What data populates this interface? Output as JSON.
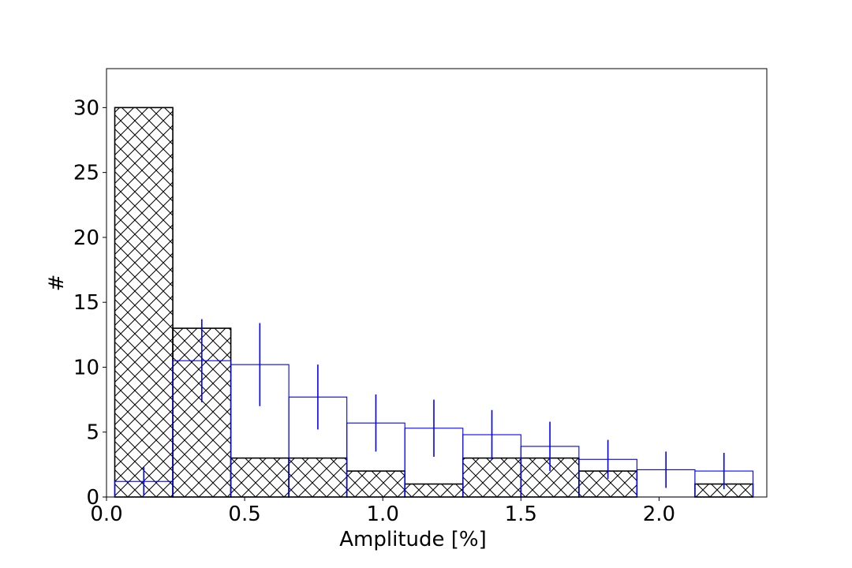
{
  "chart_data": {
    "type": "bar",
    "xlabel": "Amplitude [%]",
    "ylabel": "#",
    "xlim": [
      0.0,
      2.39
    ],
    "ylim": [
      0,
      33
    ],
    "xticks": [
      0.0,
      0.5,
      1.0,
      1.5,
      2.0
    ],
    "xtick_labels": [
      "0.0",
      "0.5",
      "1.0",
      "1.5",
      "2.0"
    ],
    "yticks": [
      0,
      5,
      10,
      15,
      20,
      25,
      30
    ],
    "ytick_labels": [
      "0",
      "5",
      "10",
      "15",
      "20",
      "25",
      "30"
    ],
    "grid": false,
    "bin_edges": [
      0.03,
      0.24,
      0.45,
      0.66,
      0.87,
      1.08,
      1.29,
      1.5,
      1.71,
      1.92,
      2.13,
      2.34
    ],
    "series": [
      {
        "style": "hatched",
        "color": "#000000",
        "values": [
          30,
          13,
          3,
          3,
          2,
          1,
          3,
          3,
          2,
          0,
          1
        ]
      },
      {
        "style": "step-with-errorbars",
        "color": "#0000ff",
        "values": [
          1.2,
          10.5,
          10.2,
          7.7,
          5.7,
          5.3,
          4.8,
          3.9,
          2.9,
          2.1,
          2.0
        ],
        "errors": [
          1.1,
          3.2,
          3.2,
          2.5,
          2.2,
          2.2,
          1.9,
          1.9,
          1.5,
          1.4,
          1.4
        ]
      }
    ]
  }
}
